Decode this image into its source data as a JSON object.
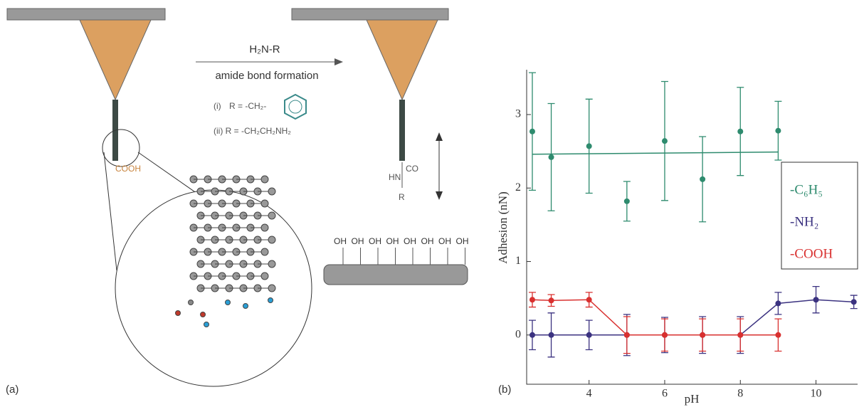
{
  "panel_a": {
    "label": "(a)",
    "reagent": "H₂N-R",
    "reaction": "amide bond formation",
    "option_1": "(i)",
    "option_1_r": "R = -CH₂-",
    "option_2": "(ii) R = -CH₂CH₂NH₂",
    "tip_group": "COOH",
    "modified_group": [
      "CO",
      "HN",
      "R"
    ],
    "surface_groups": [
      "OH",
      "OH",
      "OH",
      "OH",
      "OH",
      "OH",
      "OH",
      "OH"
    ]
  },
  "chart_data": {
    "type": "scatter",
    "label": "(b)",
    "x_label": "pH",
    "y_label": "Adhesion (nN)",
    "xlim": [
      2.35,
      11.1
    ],
    "ylim": [
      -0.67,
      3.61
    ],
    "xticks": [
      4,
      6,
      8,
      10
    ],
    "yticks": [
      0,
      1,
      2,
      3
    ],
    "legend": "right",
    "series": [
      {
        "name": "-C₆H₅",
        "color": "#2e8b6e",
        "line": false,
        "x": [
          2.5,
          3,
          4,
          5,
          6,
          7,
          8,
          9
        ],
        "values": [
          2.77,
          2.42,
          2.57,
          1.82,
          2.64,
          2.12,
          2.77,
          2.78
        ],
        "errors": [
          0.8,
          0.73,
          0.64,
          0.27,
          0.81,
          0.58,
          0.6,
          0.4
        ]
      },
      {
        "name": "-NH₂",
        "color": "#3b3280",
        "line": true,
        "x": [
          2.5,
          3,
          4,
          5,
          6,
          7,
          8,
          9,
          10,
          11
        ],
        "values": [
          0,
          0,
          0,
          0,
          0,
          0,
          0,
          0.43,
          0.48,
          0.45
        ],
        "errors": [
          0.2,
          0.3,
          0.2,
          0.28,
          0.24,
          0.25,
          0.25,
          0.15,
          0.18,
          0.09
        ]
      },
      {
        "name": "-COOH",
        "color": "#d9302f",
        "line": true,
        "x": [
          2.5,
          3,
          4,
          5,
          6,
          7,
          8,
          9
        ],
        "values": [
          0.48,
          0.47,
          0.48,
          0,
          0,
          0,
          0,
          0
        ],
        "errors": [
          0.1,
          0.08,
          0.1,
          0.25,
          0.22,
          0.22,
          0.22,
          0.22
        ]
      }
    ],
    "fit": {
      "color": "#2e8b6e",
      "x": [
        2.5,
        9
      ],
      "values": [
        2.46,
        2.49
      ]
    }
  }
}
